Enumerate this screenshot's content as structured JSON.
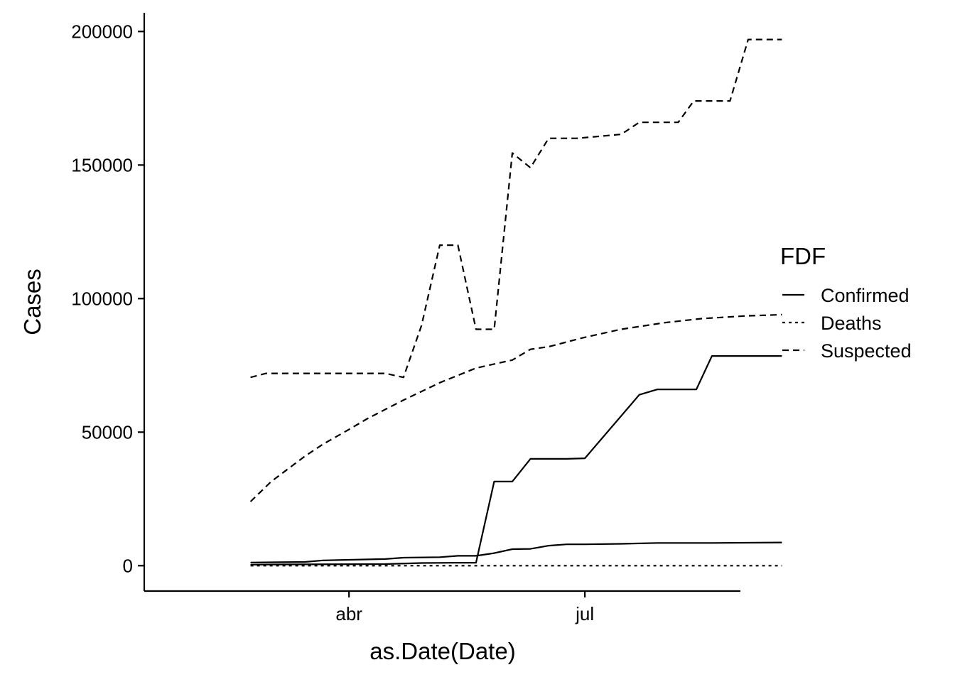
{
  "chart_data": {
    "type": "line",
    "xlabel": "as.Date(Date)",
    "ylabel": "Cases",
    "x_ticks": [
      {
        "label": "abr",
        "date": "2020-04-01"
      },
      {
        "label": "jul",
        "date": "2020-07-01"
      }
    ],
    "y_ticks": [
      0,
      50000,
      100000,
      150000,
      200000
    ],
    "ylim": [
      -9500,
      207000
    ],
    "xlim": [
      "2020-01-13",
      "2020-08-30"
    ],
    "grid": false,
    "legend": {
      "title": "FDF",
      "position": "right",
      "entries": [
        {
          "label": "Confirmed",
          "dash": "solid"
        },
        {
          "label": "Deaths",
          "dash": "dotted"
        },
        {
          "label": "Suspected",
          "dash": "dashed"
        }
      ]
    },
    "series": [
      {
        "group": "Suspected",
        "dash": "dashed",
        "points": [
          [
            "2020-02-23",
            70500
          ],
          [
            "2020-02-29",
            72000
          ],
          [
            "2020-03-15",
            72000
          ],
          [
            "2020-04-01",
            72000
          ],
          [
            "2020-04-15",
            72000
          ],
          [
            "2020-04-22",
            70500
          ],
          [
            "2020-04-29",
            90000
          ],
          [
            "2020-05-06",
            120000
          ],
          [
            "2020-05-13",
            120000
          ],
          [
            "2020-05-20",
            88500
          ],
          [
            "2020-05-27",
            88500
          ],
          [
            "2020-06-03",
            154500
          ],
          [
            "2020-06-10",
            149000
          ],
          [
            "2020-06-17",
            160000
          ],
          [
            "2020-06-28",
            160000
          ],
          [
            "2020-07-15",
            161500
          ],
          [
            "2020-07-22",
            166000
          ],
          [
            "2020-08-06",
            166000
          ],
          [
            "2020-08-12",
            174000
          ],
          [
            "2020-08-26",
            174000
          ],
          [
            "2020-09-02",
            197000
          ],
          [
            "2020-09-15",
            197000
          ]
        ]
      },
      {
        "group": "Suspected",
        "dash": "dashed",
        "points": [
          [
            "2020-02-23",
            24000
          ],
          [
            "2020-03-02",
            31500
          ],
          [
            "2020-03-15",
            41000
          ],
          [
            "2020-03-22",
            45500
          ],
          [
            "2020-04-01",
            51000
          ],
          [
            "2020-04-08",
            55000
          ],
          [
            "2020-04-15",
            58500
          ],
          [
            "2020-04-22",
            62000
          ],
          [
            "2020-05-06",
            68500
          ],
          [
            "2020-05-20",
            74000
          ],
          [
            "2020-06-03",
            77000
          ],
          [
            "2020-06-10",
            81000
          ],
          [
            "2020-06-17",
            82000
          ],
          [
            "2020-07-01",
            85500
          ],
          [
            "2020-07-15",
            88500
          ],
          [
            "2020-08-01",
            91000
          ],
          [
            "2020-08-15",
            92500
          ],
          [
            "2020-09-01",
            93500
          ],
          [
            "2020-09-15",
            94000
          ]
        ]
      },
      {
        "group": "Confirmed",
        "dash": "solid",
        "points": [
          [
            "2020-02-23",
            400
          ],
          [
            "2020-03-15",
            500
          ],
          [
            "2020-04-15",
            600
          ],
          [
            "2020-04-29",
            1000
          ],
          [
            "2020-05-13",
            1100
          ],
          [
            "2020-05-20",
            1100
          ],
          [
            "2020-05-27",
            31500
          ],
          [
            "2020-06-03",
            31500
          ],
          [
            "2020-06-10",
            40000
          ],
          [
            "2020-06-24",
            40000
          ],
          [
            "2020-07-01",
            40200
          ],
          [
            "2020-07-22",
            64000
          ],
          [
            "2020-07-29",
            66000
          ],
          [
            "2020-08-13",
            66000
          ],
          [
            "2020-08-19",
            78500
          ],
          [
            "2020-09-15",
            78500
          ]
        ]
      },
      {
        "group": "Confirmed",
        "dash": "solid",
        "points": [
          [
            "2020-02-23",
            1200
          ],
          [
            "2020-03-15",
            1400
          ],
          [
            "2020-03-22",
            2000
          ],
          [
            "2020-04-01",
            2200
          ],
          [
            "2020-04-15",
            2500
          ],
          [
            "2020-04-22",
            3000
          ],
          [
            "2020-05-06",
            3200
          ],
          [
            "2020-05-13",
            3700
          ],
          [
            "2020-05-20",
            3700
          ],
          [
            "2020-05-27",
            4700
          ],
          [
            "2020-06-03",
            6200
          ],
          [
            "2020-06-10",
            6300
          ],
          [
            "2020-06-17",
            7500
          ],
          [
            "2020-06-24",
            8000
          ],
          [
            "2020-07-01",
            8000
          ],
          [
            "2020-07-15",
            8200
          ],
          [
            "2020-07-29",
            8500
          ],
          [
            "2020-08-12",
            8500
          ],
          [
            "2020-08-19",
            8500
          ],
          [
            "2020-09-15",
            8700
          ]
        ]
      },
      {
        "group": "Deaths",
        "dash": "dotted",
        "points": [
          [
            "2020-02-23",
            0
          ],
          [
            "2020-09-15",
            0
          ]
        ]
      }
    ]
  }
}
